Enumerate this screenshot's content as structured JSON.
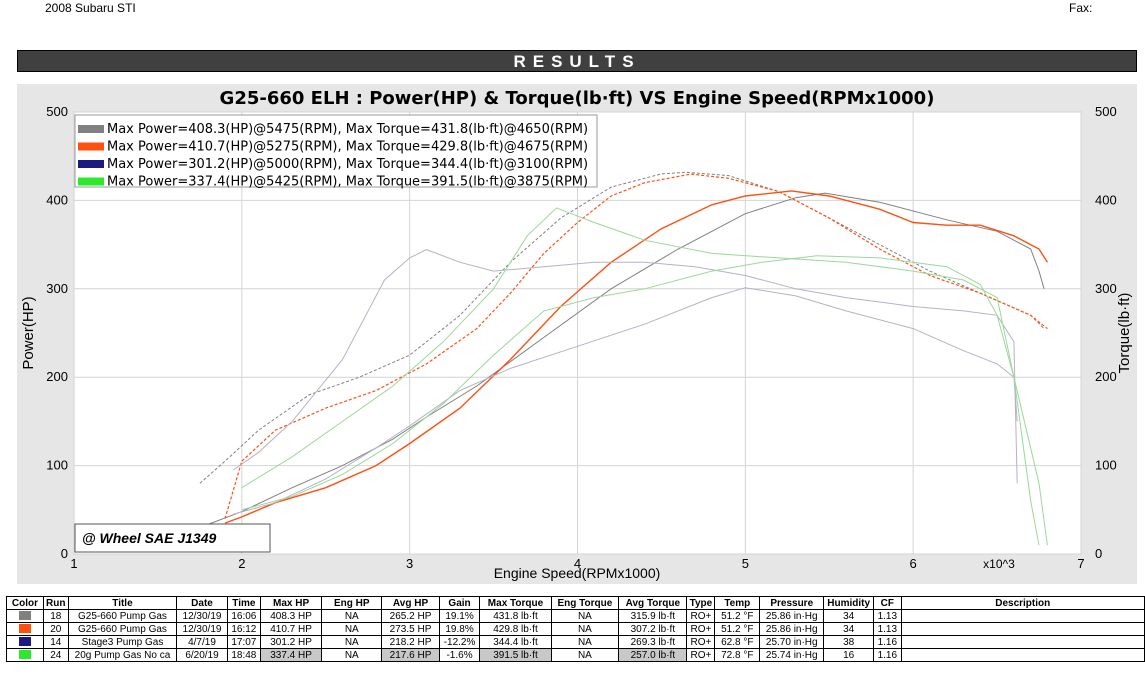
{
  "header": {
    "vehicle": "2008 Subaru STI",
    "fax_label": "Fax:"
  },
  "results_label": "RESULTS",
  "chart_data": {
    "type": "line",
    "title": "G25-660 ELH : Power(HP) & Torque(lb·ft) VS Engine Speed(RPMx1000)",
    "xlabel": "Engine Speed(RPMx1000)",
    "ylabel_left": "Power(HP)",
    "ylabel_right": "Torque(lb·ft)",
    "x_multiplier_label": "x10^3",
    "xlim": [
      1,
      7
    ],
    "ylim": [
      0,
      500
    ],
    "x_ticks": [
      "1",
      "2",
      "3",
      "4",
      "5",
      "6",
      "7"
    ],
    "y_ticks": [
      "0",
      "100",
      "200",
      "300",
      "400",
      "500"
    ],
    "grid": true,
    "legend_position": "top-left",
    "annotation": "@ Wheel SAE J1349",
    "colors": {
      "run18": "#808080",
      "run20": "#ff5010",
      "run14": "#1a1a80",
      "run24": "#2ee82e"
    },
    "legend": [
      {
        "color": "#808080",
        "text": "Max Power=408.3(HP)@5475(RPM), Max Torque=431.8(lb·ft)@4650(RPM)"
      },
      {
        "color": "#ff5010",
        "text": "Max Power=410.7(HP)@5275(RPM), Max Torque=429.8(lb·ft)@4675(RPM)"
      },
      {
        "color": "#1a1a80",
        "text": "Max Power=301.2(HP)@5000(RPM), Max Torque=344.4(lb·ft)@3100(RPM)"
      },
      {
        "color": "#2ee82e",
        "text": "Max Power=337.4(HP)@5425(RPM), Max Torque=391.5(lb·ft)@3875(RPM)"
      }
    ],
    "series": [
      {
        "run": "18",
        "kind": "power",
        "color": "#808080",
        "dashed": false,
        "width": 1,
        "x": [
          1.75,
          2.0,
          2.3,
          2.6,
          2.9,
          3.1,
          3.4,
          3.8,
          4.2,
          4.6,
          5.0,
          5.3,
          5.475,
          5.8,
          6.2,
          6.5,
          6.7,
          6.75,
          6.78
        ],
        "y": [
          30,
          48,
          75,
          100,
          130,
          155,
          190,
          245,
          300,
          345,
          385,
          403,
          408.3,
          398,
          378,
          365,
          345,
          320,
          300
        ]
      },
      {
        "run": "18",
        "kind": "torque",
        "color": "#808080",
        "dashed": true,
        "width": 1,
        "x": [
          1.75,
          1.9,
          2.1,
          2.4,
          2.7,
          3.0,
          3.3,
          3.6,
          3.9,
          4.2,
          4.5,
          4.65,
          4.9,
          5.2,
          5.5,
          5.8,
          6.1,
          6.4,
          6.7,
          6.78
        ],
        "y": [
          80,
          105,
          140,
          180,
          200,
          225,
          270,
          330,
          380,
          415,
          430,
          431.8,
          428,
          410,
          380,
          350,
          320,
          295,
          270,
          255
        ]
      },
      {
        "run": "20",
        "kind": "power",
        "color": "#ff5010",
        "dashed": false,
        "width": 1.4,
        "x": [
          1.9,
          2.0,
          2.2,
          2.5,
          2.8,
          3.0,
          3.3,
          3.6,
          3.9,
          4.2,
          4.5,
          4.8,
          5.0,
          5.275,
          5.5,
          5.8,
          6.0,
          6.2,
          6.4,
          6.6,
          6.75,
          6.8
        ],
        "y": [
          35,
          42,
          58,
          75,
          100,
          125,
          165,
          220,
          280,
          330,
          368,
          395,
          405,
          410.7,
          405,
          390,
          375,
          372,
          372,
          360,
          345,
          330
        ]
      },
      {
        "run": "20",
        "kind": "torque",
        "color": "#ff5010",
        "dashed": true,
        "width": 1.2,
        "x": [
          1.9,
          2.0,
          2.2,
          2.5,
          2.8,
          3.1,
          3.4,
          3.6,
          3.8,
          4.0,
          4.2,
          4.4,
          4.675,
          4.9,
          5.2,
          5.5,
          5.8,
          6.1,
          6.4,
          6.7,
          6.8
        ],
        "y": [
          40,
          105,
          140,
          165,
          185,
          215,
          255,
          295,
          340,
          375,
          405,
          420,
          429.8,
          425,
          410,
          380,
          345,
          315,
          295,
          270,
          255
        ]
      },
      {
        "run": "14",
        "kind": "power",
        "color": "#b8b0c8",
        "dashed": false,
        "width": 1,
        "x": [
          1.95,
          2.2,
          2.5,
          2.8,
          3.0,
          3.3,
          3.6,
          4.0,
          4.4,
          4.8,
          5.0,
          5.3,
          5.6,
          6.0,
          6.3,
          6.5,
          6.6,
          6.62
        ],
        "y": [
          45,
          58,
          85,
          120,
          145,
          185,
          210,
          235,
          260,
          290,
          301.2,
          292,
          275,
          255,
          230,
          215,
          200,
          150
        ]
      },
      {
        "run": "14",
        "kind": "torque",
        "color": "#b8b0c8",
        "dashed": false,
        "width": 1,
        "x": [
          1.95,
          2.1,
          2.3,
          2.6,
          2.85,
          3.0,
          3.1,
          3.3,
          3.5,
          3.8,
          4.1,
          4.4,
          4.7,
          5.0,
          5.3,
          5.6,
          6.0,
          6.3,
          6.5,
          6.6,
          6.62
        ],
        "y": [
          95,
          115,
          150,
          220,
          310,
          335,
          344.4,
          330,
          320,
          325,
          330,
          330,
          325,
          315,
          300,
          290,
          280,
          275,
          270,
          240,
          80
        ]
      },
      {
        "run": "24",
        "kind": "power",
        "color": "#9ad89a",
        "dashed": false,
        "width": 1,
        "x": [
          2.0,
          2.3,
          2.6,
          2.9,
          3.2,
          3.5,
          3.8,
          4.1,
          4.4,
          4.8,
          5.1,
          5.425,
          5.8,
          6.2,
          6.4,
          6.5,
          6.6,
          6.75,
          6.8
        ],
        "y": [
          50,
          65,
          90,
          125,
          170,
          225,
          275,
          290,
          300,
          320,
          330,
          337.4,
          335,
          325,
          305,
          270,
          200,
          80,
          10
        ]
      },
      {
        "run": "24",
        "kind": "torque",
        "color": "#9ad89a",
        "dashed": false,
        "width": 1,
        "x": [
          2.0,
          2.3,
          2.6,
          2.9,
          3.2,
          3.5,
          3.7,
          3.875,
          4.1,
          4.4,
          4.8,
          5.2,
          5.6,
          6.0,
          6.3,
          6.5,
          6.6,
          6.7,
          6.75
        ],
        "y": [
          75,
          110,
          150,
          190,
          240,
          300,
          360,
          391.5,
          375,
          355,
          340,
          335,
          330,
          320,
          310,
          290,
          200,
          60,
          10
        ]
      }
    ]
  },
  "table": {
    "columns": [
      "Color",
      "Run",
      "Title",
      "Date",
      "Time",
      "Max HP",
      "Eng HP",
      "Avg HP",
      "Gain",
      "Max Torque",
      "Eng Torque",
      "Avg Torque",
      "Type",
      "Temp",
      "Pressure",
      "Humidity",
      "CF",
      "Description"
    ],
    "rows": [
      {
        "color": "#808080",
        "cells": [
          "18",
          "G25-660 Pump Gas",
          "12/30/19",
          "16:06",
          "408.3 HP",
          "NA",
          "265.2 HP",
          "19.1%",
          "431.8 lb·ft",
          "NA",
          "315.9 lb·ft",
          "RO+",
          "51.2 °F",
          "25.86 in·Hg",
          "34",
          "1.13",
          ""
        ]
      },
      {
        "color": "#ff5010",
        "cells": [
          "20",
          "G25-660 Pump Gas",
          "12/30/19",
          "16:12",
          "410.7 HP",
          "NA",
          "273.5 HP",
          "19.8%",
          "429.8 lb·ft",
          "NA",
          "307.2 lb·ft",
          "RO+",
          "51.2 °F",
          "25.86 in·Hg",
          "34",
          "1.13",
          ""
        ]
      },
      {
        "color": "#1a1a80",
        "cells": [
          "14",
          "Stage3 Pump Gas",
          "4/7/19",
          "17:07",
          "301.2 HP",
          "NA",
          "218.2 HP",
          "-12.2%",
          "344.4 lb·ft",
          "NA",
          "269.3 lb·ft",
          "RO+",
          "62.8 °F",
          "25.70 in·Hg",
          "38",
          "1.16",
          ""
        ]
      },
      {
        "color": "#2ee82e",
        "cells": [
          "24",
          "20g Pump Gas No ca",
          "6/20/19",
          "18:48",
          "337.4 HP",
          "NA",
          "217.6 HP",
          "-1.6%",
          "391.5 lb·ft",
          "NA",
          "257.0 lb·ft",
          "RO+",
          "72.8 °F",
          "25.74 in·Hg",
          "16",
          "1.16",
          ""
        ]
      }
    ]
  }
}
